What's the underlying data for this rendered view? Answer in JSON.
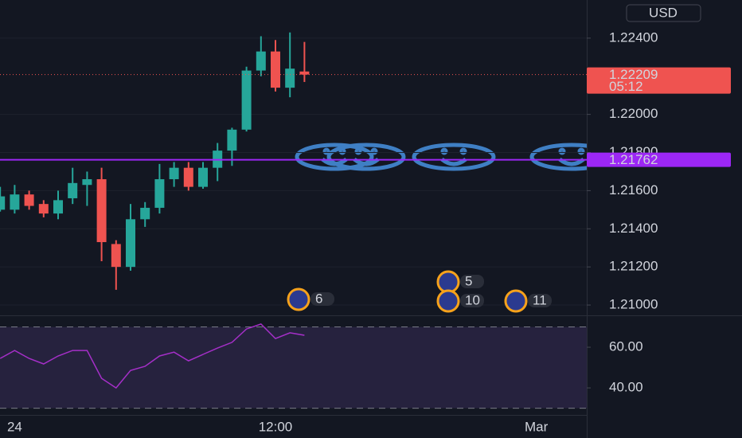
{
  "chart_data": [
    {
      "type": "candlestick",
      "currency": "USD",
      "categories": [
        null,
        "24",
        null,
        null,
        null,
        null,
        null,
        null,
        null,
        null,
        null,
        null,
        null,
        null,
        null,
        null,
        null,
        null,
        null,
        "12:00",
        null,
        null,
        null,
        null,
        null,
        null,
        null,
        null,
        null,
        null,
        null,
        null,
        null,
        null,
        null,
        null,
        null,
        "Mar",
        null,
        null,
        null
      ],
      "open": [
        1.215,
        1.215,
        1.2158,
        1.2153,
        1.2148,
        1.2156,
        1.2163,
        1.2166,
        1.2132,
        1.212,
        1.2145,
        1.2151,
        1.2166,
        1.2172,
        1.2162,
        1.2172,
        1.2181,
        1.2192,
        1.2223,
        1.2233,
        1.2214,
        1.22225,
        null,
        null,
        null,
        null,
        null,
        null,
        null,
        null,
        null,
        null,
        null,
        null,
        null,
        null,
        null,
        null,
        null,
        null,
        null
      ],
      "high": [
        1.2162,
        1.2163,
        1.216,
        1.2155,
        1.216,
        1.2172,
        1.217,
        1.2172,
        1.2134,
        1.2153,
        1.2154,
        1.2174,
        1.2175,
        1.2175,
        1.2175,
        1.2185,
        1.2193,
        1.2225,
        1.2241,
        1.2239,
        1.2243,
        1.2238,
        null,
        null,
        null,
        null,
        null,
        null,
        null,
        null,
        null,
        null,
        null,
        null,
        null,
        null,
        null,
        null,
        null,
        null,
        null
      ],
      "low": [
        1.2149,
        1.2148,
        1.215,
        1.2146,
        1.2145,
        1.2153,
        1.2152,
        1.2123,
        1.2108,
        1.2118,
        1.2141,
        1.2148,
        1.2162,
        1.216,
        1.2161,
        1.2165,
        1.2173,
        1.2191,
        1.222,
        1.2212,
        1.2209,
        1.2217,
        null,
        null,
        null,
        null,
        null,
        null,
        null,
        null,
        null,
        null,
        null,
        null,
        null,
        null,
        null,
        null,
        null,
        null,
        null
      ],
      "close": [
        1.2157,
        1.2158,
        1.2152,
        1.2148,
        1.2155,
        1.2164,
        1.2166,
        1.2133,
        1.212,
        1.2145,
        1.2151,
        1.2166,
        1.2172,
        1.2162,
        1.2172,
        1.2181,
        1.2192,
        1.2223,
        1.2233,
        1.2214,
        1.2224,
        1.22209,
        null,
        null,
        null,
        null,
        null,
        null,
        null,
        null,
        null,
        null,
        null,
        null,
        null,
        null,
        null,
        null,
        null,
        null,
        null
      ],
      "up_color": "#26a69a",
      "down_color": "#ef5350",
      "ylim": [
        1.2095,
        1.226
      ],
      "yticks": [
        {
          "value": 1.224,
          "label": "1.22400"
        },
        {
          "value": 1.22,
          "label": "1.22000"
        },
        {
          "value": 1.218,
          "label": "1.21800"
        },
        {
          "value": 1.216,
          "label": "1.21600"
        },
        {
          "value": 1.214,
          "label": "1.21400"
        },
        {
          "value": 1.212,
          "label": "1.21200"
        },
        {
          "value": 1.21,
          "label": "1.21000"
        }
      ],
      "last_price": 1.22209,
      "countdown": "05:12",
      "horizontal_line": {
        "value": 1.21762,
        "color": "#9c27f5"
      },
      "events": [
        "6",
        "5",
        "10",
        "11"
      ]
    },
    {
      "type": "line",
      "color": "#a52fc8",
      "values": [
        54.5,
        58.4,
        54.5,
        51.8,
        55.7,
        58.4,
        58.4,
        44.7,
        40,
        48.6,
        50.6,
        55.7,
        57.6,
        53.3,
        56.5,
        59.6,
        62.4,
        69,
        71.4,
        64.3,
        67.1,
        65.9,
        null,
        null,
        null,
        null,
        null,
        null,
        null,
        null,
        null,
        null,
        null,
        null,
        null,
        null,
        null,
        null,
        null,
        null,
        null
      ],
      "ylim": [
        27.1,
        74.9
      ],
      "yticks": [
        {
          "value": 60,
          "label": "60.00"
        },
        {
          "value": 40,
          "label": "40.00"
        }
      ],
      "levels": [
        70,
        30
      ],
      "band_color": "#7e57c2"
    }
  ]
}
